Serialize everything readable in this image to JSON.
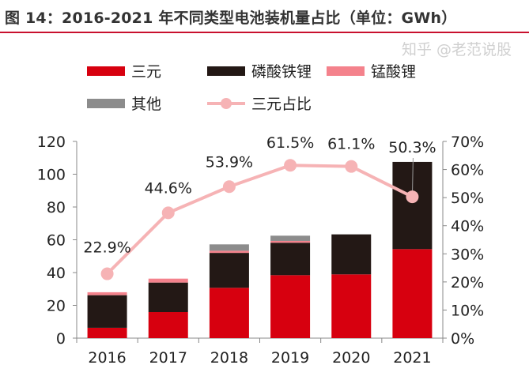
{
  "title": "图 14：2016-2021 年不同类型电池装机量占比（单位：GWh）",
  "watermark": "知乎 @老范说股",
  "chart_data": {
    "type": "bar",
    "stacked": true,
    "categories": [
      "2016",
      "2017",
      "2018",
      "2019",
      "2020",
      "2021"
    ],
    "series": [
      {
        "name": "三元",
        "color": "#d7000f",
        "values": [
          6.3,
          15.9,
          30.7,
          38.4,
          38.9,
          54.3
        ]
      },
      {
        "name": "磷酸铁锂",
        "color": "#231815",
        "values": [
          19.9,
          18.0,
          21.3,
          19.8,
          24.4,
          53.2
        ]
      },
      {
        "name": "锰酸锂",
        "color": "#f4828c",
        "values": [
          1.8,
          2.4,
          1.3,
          1.1,
          0,
          0
        ]
      },
      {
        "name": "其他",
        "color": "#8c8c8c",
        "values": [
          0,
          0,
          3.9,
          3.2,
          0,
          0
        ]
      }
    ],
    "line_series": {
      "name": "三元占比",
      "color": "#f6b3b5",
      "axis": "right",
      "values": [
        22.9,
        44.6,
        53.9,
        61.5,
        61.1,
        50.3
      ],
      "labels": [
        "22.9%",
        "44.6%",
        "53.9%",
        "61.5%",
        "61.1%",
        "50.3%"
      ]
    },
    "y_left": {
      "ylim": [
        0,
        120
      ],
      "ticks": [
        "0",
        "20",
        "40",
        "60",
        "80",
        "100",
        "120"
      ]
    },
    "y_right": {
      "ylim": [
        0,
        70
      ],
      "ticks": [
        "0%",
        "10%",
        "20%",
        "30%",
        "40%",
        "50%",
        "60%",
        "70%"
      ]
    },
    "legend": "top",
    "grid": false
  }
}
